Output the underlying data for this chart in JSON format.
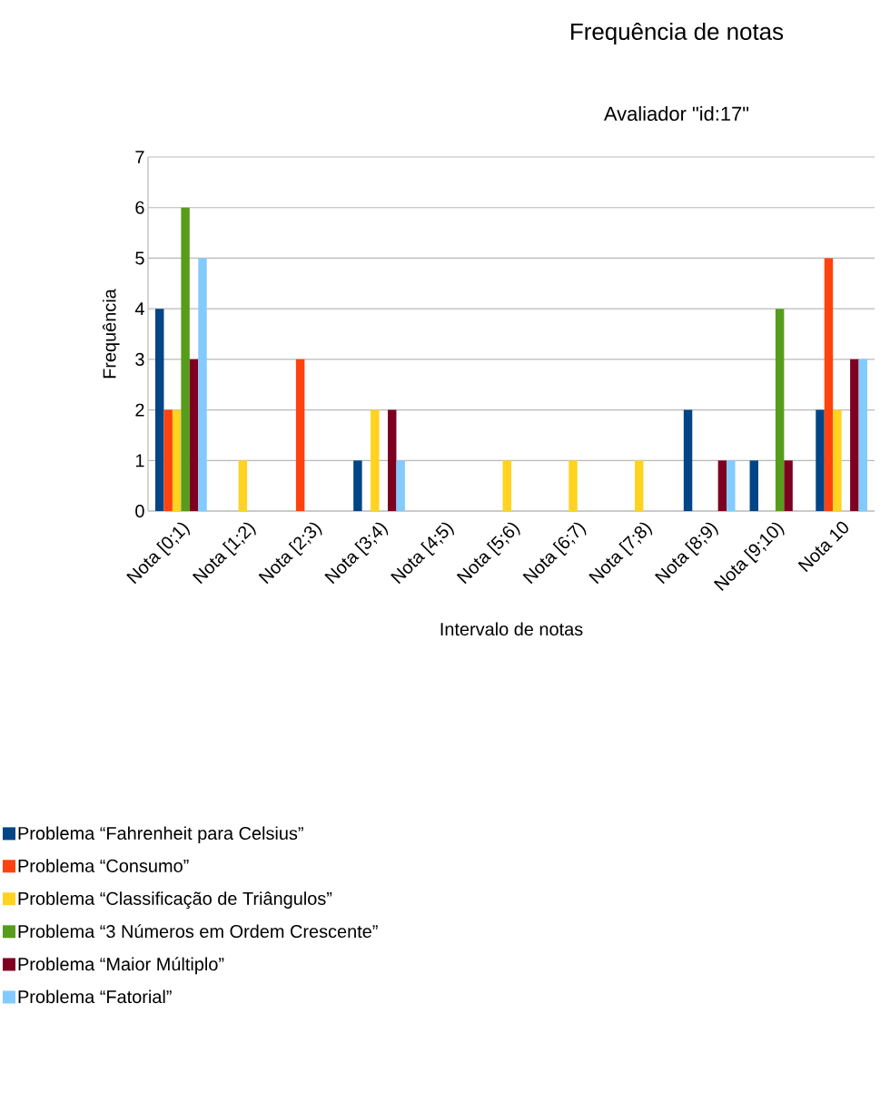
{
  "chart_data": {
    "type": "bar",
    "title": "Frequência de notas",
    "subtitle": "Avaliador \"id:17\"",
    "xlabel": "Intervalo de notas",
    "ylabel": "Frequência",
    "categories": [
      "Nota [0;1)",
      "Nota [1;2)",
      "Nota [2;3)",
      "Nota [3;4)",
      "Nota [4;5)",
      "Nota [5;6)",
      "Nota [6;7)",
      "Nota [7;8)",
      "Nota [8;9)",
      "Nota [9;10)",
      "Nota 10"
    ],
    "series": [
      {
        "name": "Problema “Fahrenheit para Celsius”",
        "color": "#004586",
        "values": [
          4,
          0,
          0,
          1,
          0,
          0,
          0,
          0,
          2,
          1,
          2
        ]
      },
      {
        "name": "Problema “Consumo”",
        "color": "#ff420e",
        "values": [
          2,
          0,
          3,
          0,
          0,
          0,
          0,
          0,
          0,
          0,
          5
        ]
      },
      {
        "name": "Problema “Classificação de Triângulos”",
        "color": "#ffd320",
        "values": [
          2,
          1,
          0,
          2,
          0,
          1,
          1,
          1,
          0,
          0,
          2
        ]
      },
      {
        "name": "Problema “3 Números em Ordem Crescente”",
        "color": "#579d1c",
        "values": [
          6,
          0,
          0,
          0,
          0,
          0,
          0,
          0,
          0,
          4,
          0
        ]
      },
      {
        "name": "Problema “Maior Múltiplo”",
        "color": "#7e0021",
        "values": [
          3,
          0,
          0,
          2,
          0,
          0,
          0,
          0,
          1,
          1,
          3
        ]
      },
      {
        "name": "Problema “Fatorial”",
        "color": "#83caff",
        "values": [
          5,
          0,
          0,
          1,
          0,
          0,
          0,
          0,
          1,
          0,
          3
        ]
      }
    ],
    "ylim": [
      0,
      7
    ],
    "yticks": [
      0,
      1,
      2,
      3,
      4,
      5,
      6,
      7
    ],
    "grid": "y",
    "legend": "bottom left"
  }
}
